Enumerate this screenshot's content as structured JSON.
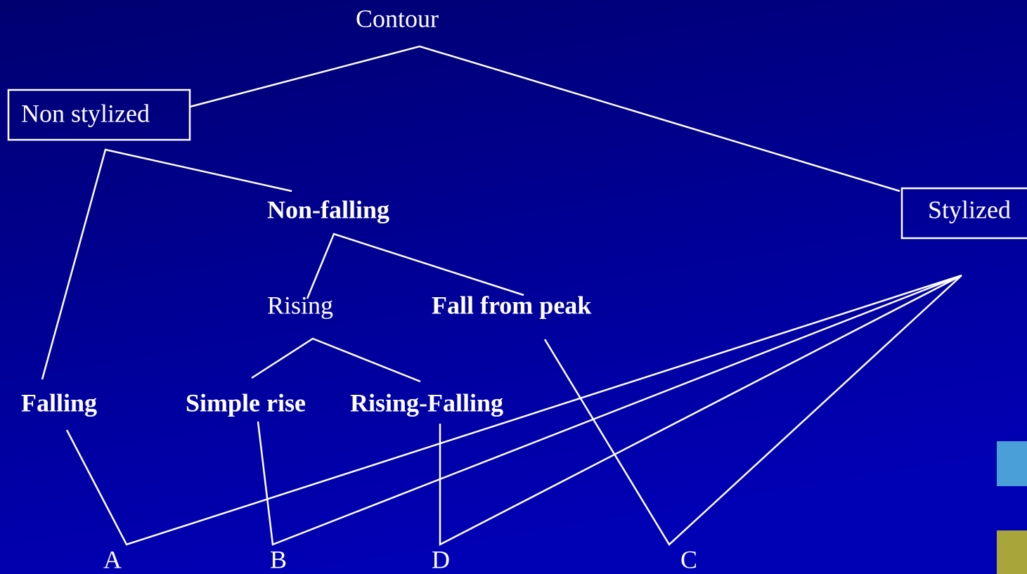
{
  "title": "Contour",
  "nodes": [
    {
      "label": "Non stylized"
    },
    {
      "label": "Stylized"
    },
    {
      "label": "Non-falling"
    },
    {
      "label": "Rising"
    },
    {
      "label": "Fall from peak"
    },
    {
      "label": "Falling"
    },
    {
      "label": "Simple rise"
    },
    {
      "label": "Rising-Falling"
    },
    {
      "label": "A"
    },
    {
      "label": "B"
    },
    {
      "label": "D"
    },
    {
      "label": "C"
    }
  ]
}
